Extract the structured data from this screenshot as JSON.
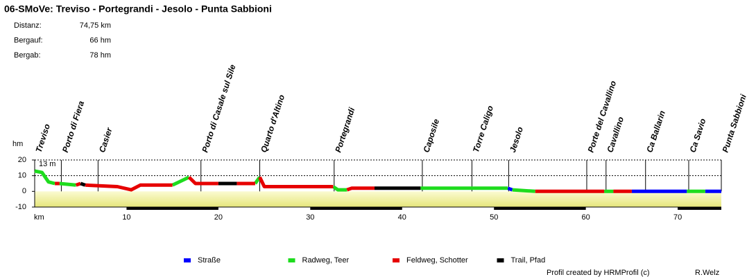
{
  "chart_data": {
    "type": "elevation-profile",
    "title": "06-SMoVe: Treviso - Portegrandi - Jesolo - Punta Sabbioni",
    "stats": [
      {
        "label": "Distanz:",
        "value": "74,75 km"
      },
      {
        "label": "Bergauf:",
        "value": "66 hm"
      },
      {
        "label": "Bergab:",
        "value": "78 hm"
      }
    ],
    "y_label": "hm",
    "x_label": "km",
    "max_label": "13 m",
    "xlim": [
      0,
      74.75
    ],
    "ylim": [
      -10,
      20
    ],
    "xticks": [
      10,
      20,
      30,
      40,
      50,
      60,
      70
    ],
    "yticks": [
      20,
      10,
      0,
      -10
    ],
    "grid": true,
    "waypoints": [
      {
        "label": "Treviso",
        "km": 0
      },
      {
        "label": "Porto di Fiera",
        "km": 2.9
      },
      {
        "label": "Casier",
        "km": 6.9
      },
      {
        "label": "Porto di Casale sul Sile",
        "km": 18.1
      },
      {
        "label": "Quarto d'Altino",
        "km": 24.5
      },
      {
        "label": "Portegrandi",
        "km": 32.6
      },
      {
        "label": "Caposile",
        "km": 42.2
      },
      {
        "label": "Torre Caligo",
        "km": 47.6
      },
      {
        "label": "Jesolo",
        "km": 51.6
      },
      {
        "label": "Porte del Cavallino",
        "km": 60.1
      },
      {
        "label": "Cavallino",
        "km": 62.2
      },
      {
        "label": "Ca Ballarin",
        "km": 66.5
      },
      {
        "label": "Ca Savio",
        "km": 71.2
      },
      {
        "label": "Punta Sabbioni",
        "km": 74.75
      }
    ],
    "x": [
      0,
      0.8,
      1.5,
      2.2,
      2.2,
      2.7,
      2.7,
      4.5,
      4.5,
      5.0,
      5.0,
      5.5,
      5.5,
      9.0,
      10.5,
      11.5,
      15.0,
      15.0,
      16.8,
      16.8,
      17.5,
      20.0,
      20.0,
      22.0,
      22.0,
      24.0,
      24.0,
      24.5,
      24.5,
      25.0,
      32.5,
      32.5,
      33.0,
      34.0,
      34.0,
      34.5,
      37.0,
      37.0,
      42.0,
      42.0,
      51.5,
      51.5,
      52.0,
      52.0,
      54.5,
      54.5,
      62.0,
      62.0,
      63.0,
      63.0,
      65.0,
      65.0,
      71.0,
      71.0,
      73.0,
      73.0,
      74.75
    ],
    "series": [
      {
        "name": "Straße",
        "color": "#0000ff",
        "values": [
          null,
          null,
          null,
          null,
          null,
          null,
          null,
          null,
          null,
          null,
          null,
          null,
          null,
          null,
          null,
          null,
          null,
          null,
          null,
          null,
          null,
          null,
          null,
          null,
          null,
          null,
          null,
          null,
          null,
          null,
          null,
          null,
          null,
          null,
          null,
          null,
          null,
          null,
          null,
          null,
          null,
          2,
          1,
          null,
          null,
          null,
          null,
          null,
          null,
          null,
          null,
          0,
          0,
          null,
          null,
          0,
          0
        ]
      },
      {
        "name": "Radweg, Teer",
        "color": "#1edc1e",
        "values": [
          13,
          12,
          6,
          5,
          null,
          null,
          5,
          4,
          null,
          null,
          null,
          null,
          null,
          null,
          null,
          null,
          null,
          4,
          9,
          null,
          null,
          null,
          null,
          null,
          null,
          null,
          5,
          9,
          null,
          null,
          null,
          3,
          1,
          1,
          null,
          null,
          null,
          null,
          null,
          2,
          2,
          null,
          null,
          1,
          0,
          null,
          null,
          0,
          0,
          null,
          null,
          null,
          null,
          0,
          0,
          null,
          null
        ]
      },
      {
        "name": "Feldweg, Schotter",
        "color": "#e60000",
        "values": [
          null,
          null,
          null,
          null,
          5,
          5,
          null,
          null,
          4,
          5,
          null,
          null,
          4,
          3,
          1,
          4,
          4,
          null,
          null,
          9,
          5,
          5,
          null,
          null,
          5,
          5,
          null,
          null,
          9,
          3,
          3,
          null,
          null,
          null,
          1,
          2,
          2,
          null,
          null,
          null,
          null,
          null,
          null,
          null,
          null,
          0,
          0,
          null,
          null,
          0,
          0,
          null,
          null,
          null,
          null,
          null,
          null
        ]
      },
      {
        "name": "Trail, Pfad",
        "color": "#000000",
        "values": [
          null,
          null,
          null,
          null,
          null,
          null,
          null,
          null,
          null,
          null,
          5,
          4,
          null,
          null,
          null,
          null,
          null,
          null,
          null,
          null,
          null,
          null,
          5,
          5,
          null,
          null,
          null,
          null,
          null,
          null,
          null,
          null,
          null,
          null,
          null,
          null,
          null,
          2,
          2,
          null,
          null,
          null,
          null,
          null,
          null,
          null,
          null,
          null,
          null,
          null,
          null,
          null,
          null,
          null,
          null,
          null,
          null
        ]
      }
    ],
    "credit": "Profil created by HRMProfil (c)",
    "author": "R.Welz"
  }
}
